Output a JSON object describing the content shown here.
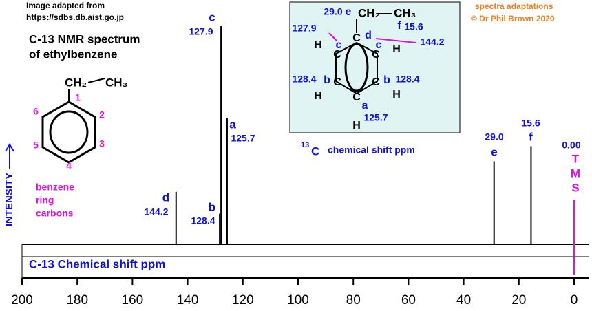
{
  "chart_data": {
    "type": "nmr",
    "title": [
      "C-13 NMR spectrum",
      "of ethylbenzene"
    ],
    "source": [
      "Image adapted from",
      "https://sdbs.db.aist.go.jp"
    ],
    "credit": [
      "spectra adaptations",
      "© Dr Phil Brown 2020"
    ],
    "xlabel": "C-13 Chemical shift ppm",
    "ylabel": "INTENSITY",
    "xlim": [
      200,
      0
    ],
    "xticks": [
      200,
      180,
      160,
      140,
      120,
      100,
      80,
      60,
      40,
      20,
      0
    ],
    "ylim": [
      0,
      100
    ],
    "color": "#000000",
    "label_color": "#1111dd",
    "peaks": {
      "letters": [
        "d",
        "b",
        "c",
        "a",
        "e",
        "f"
      ],
      "x": [
        144.2,
        128.4,
        127.9,
        125.7,
        29.0,
        15.6
      ],
      "x_labels": [
        "144.2",
        "128.4",
        "127.9",
        "125.7",
        "29.0",
        "15.6"
      ],
      "values": [
        24,
        14,
        100,
        58,
        38,
        45
      ]
    },
    "tms": {
      "x": 0,
      "x_label": "0.00",
      "letters": [
        "T",
        "M",
        "S"
      ],
      "color": "#e010e0"
    },
    "structure": {
      "groups": [
        "CH₂",
        "CH₃"
      ],
      "numbers": [
        "1",
        "2",
        "3",
        "4",
        "5",
        "6"
      ],
      "note": [
        "benzene",
        "ring",
        "carbons"
      ]
    },
    "inset": {
      "caption": [
        "13",
        "C",
        "chemical shift ppm"
      ],
      "groups": [
        "CH₂",
        "CH₃"
      ],
      "atoms": [
        "C",
        "C",
        "C",
        "C",
        "C",
        "C",
        "H",
        "H",
        "H",
        "H",
        "H"
      ],
      "letters": [
        "e",
        "f",
        "d",
        "c",
        "c",
        "b",
        "b",
        "a"
      ],
      "shifts": [
        "29.0",
        "15.6",
        "127.9",
        "144.2",
        "128.4",
        "128.4",
        "125.7"
      ]
    }
  }
}
